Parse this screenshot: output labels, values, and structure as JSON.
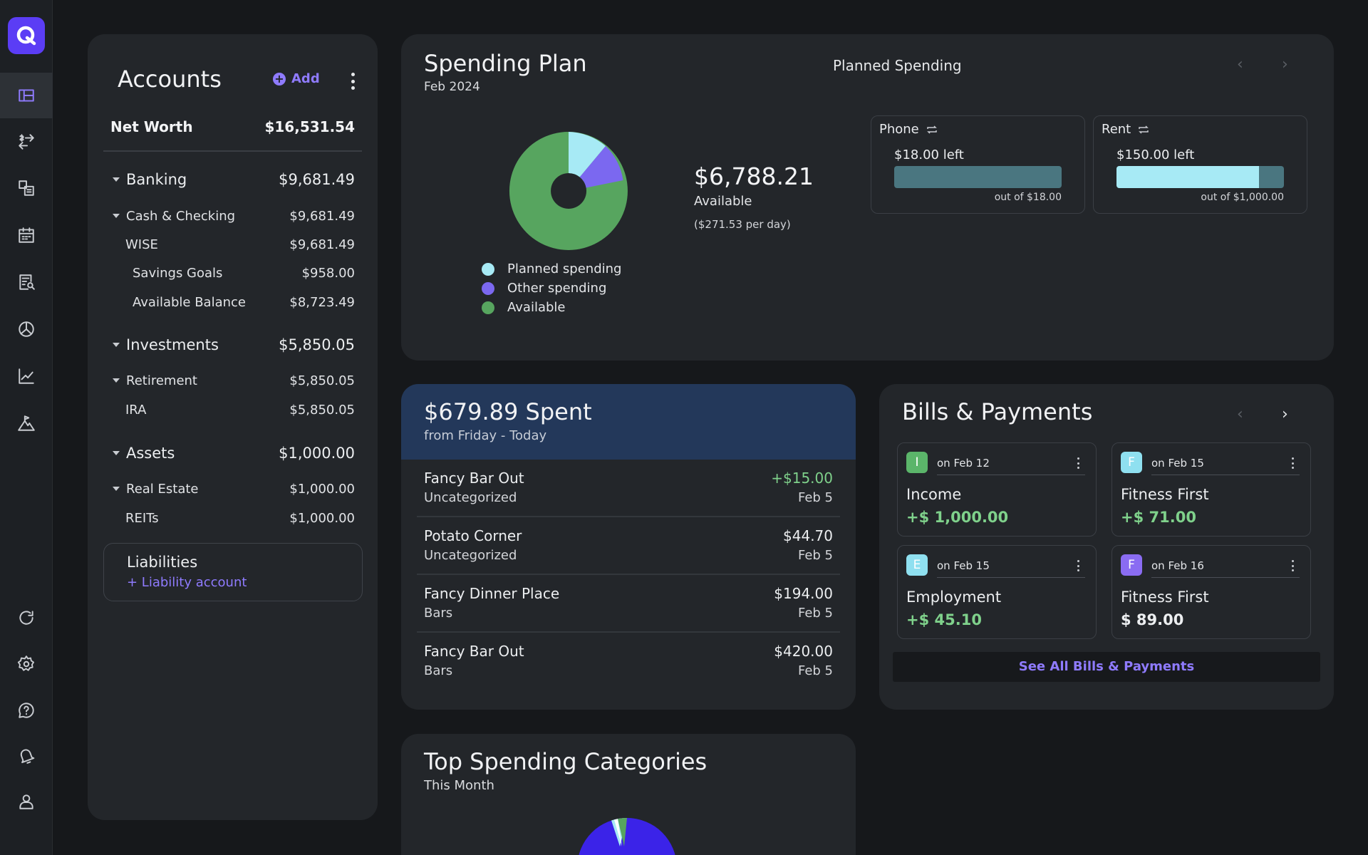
{
  "accounts": {
    "title": "Accounts",
    "add_label": "Add",
    "net_worth_label": "Net Worth",
    "net_worth_value": "$16,531.54",
    "groups": [
      {
        "label": "Banking",
        "value": "$9,681.49"
      },
      {
        "label": "Cash & Checking",
        "value": "$9,681.49"
      },
      {
        "label": "WISE",
        "value": "$9,681.49"
      },
      {
        "label": "Savings Goals",
        "value": "$958.00"
      },
      {
        "label": "Available Balance",
        "value": "$8,723.49"
      },
      {
        "label": "Investments",
        "value": "$5,850.05"
      },
      {
        "label": "Retirement",
        "value": "$5,850.05"
      },
      {
        "label": "IRA",
        "value": "$5,850.05"
      },
      {
        "label": "Assets",
        "value": "$1,000.00"
      },
      {
        "label": "Real Estate",
        "value": "$1,000.00"
      },
      {
        "label": "REITs",
        "value": "$1,000.00"
      }
    ],
    "liabilities_title": "Liabilities",
    "liability_link": "+ Liability account"
  },
  "spending_plan": {
    "title": "Spending Plan",
    "month": "Feb 2024",
    "header": "Planned Spending",
    "available_amount": "$6,788.21",
    "available_label": "Available",
    "per_day": "($271.53 per day)",
    "legend": [
      {
        "label": "Planned spending",
        "color": "#a7eaf5"
      },
      {
        "label": "Other spending",
        "color": "#7b68f0"
      },
      {
        "label": "Available",
        "color": "#57a55f"
      }
    ],
    "budgets": [
      {
        "name": "Phone",
        "left": "$18.00 left",
        "out_of": "out of $18.00",
        "remaining_fraction": 0
      },
      {
        "name": "Rent",
        "left": "$150.00 left",
        "out_of": "out of $1,000.00",
        "remaining_fraction": 0.85
      }
    ]
  },
  "spent": {
    "title": "$679.89 Spent",
    "subtitle": "from Friday - Today",
    "transactions": [
      {
        "name": "Fancy Bar Out",
        "category": "Uncategorized",
        "amount": "+$15.00",
        "date": "Feb 5"
      },
      {
        "name": "Potato Corner",
        "category": "Uncategorized",
        "amount": "$44.70",
        "date": "Feb 5"
      },
      {
        "name": "Fancy Dinner Place",
        "category": "Bars",
        "amount": "$194.00",
        "date": "Feb 5"
      },
      {
        "name": "Fancy Bar Out",
        "category": "Bars",
        "amount": "$420.00",
        "date": "Feb 5"
      }
    ]
  },
  "bills": {
    "title": "Bills & Payments",
    "items": [
      {
        "initial": "I",
        "date": "on Feb 12",
        "payee": "Income",
        "amount": "+$ 1,000.00",
        "color": "#5bb56a"
      },
      {
        "initial": "F",
        "date": "on Feb 15",
        "payee": "Fitness First",
        "amount": "+$ 71.00",
        "color": "#8fe0f0"
      },
      {
        "initial": "E",
        "date": "on Feb 15",
        "payee": "Employment",
        "amount": "+$ 45.10",
        "color": "#8fe0f0"
      },
      {
        "initial": "F",
        "date": "on Feb 16",
        "payee": "Fitness First",
        "amount": "$ 89.00",
        "color": "#8a6cf2"
      }
    ],
    "see_all": "See All Bills & Payments"
  },
  "top_categories": {
    "title": "Top Spending Categories",
    "subtitle": "This Month"
  },
  "colors": {
    "accent": "#8f7bff",
    "positive": "#7fd18b",
    "donut_planned": "#a7eaf5",
    "donut_other": "#7b68f0",
    "donut_available": "#57a55f"
  }
}
